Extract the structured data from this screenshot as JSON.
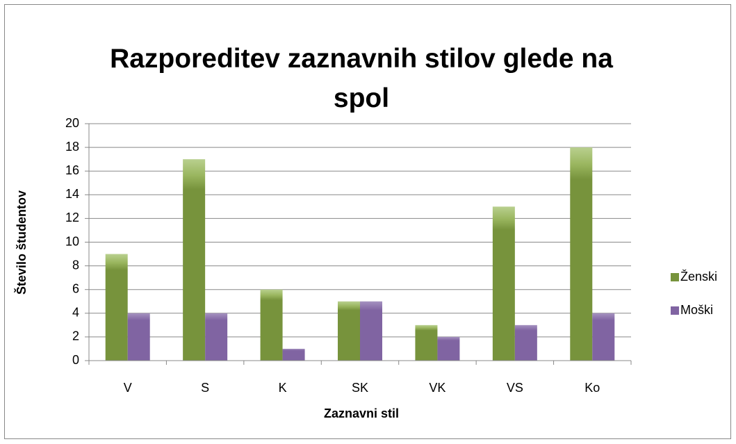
{
  "chart_data": {
    "type": "bar",
    "title": "Razporeditev zaznavnih stilov glede na spol",
    "x_label": "Zaznavni stil",
    "y_label": "Število študentov",
    "categories": [
      "V",
      "S",
      "K",
      "SK",
      "VK",
      "VS",
      "Ko"
    ],
    "series": [
      {
        "name": "Ženski",
        "color": "#77933c",
        "values": [
          9,
          17,
          6,
          5,
          3,
          13,
          18
        ]
      },
      {
        "name": "Moški",
        "color": "#8064a2",
        "values": [
          4,
          4,
          1,
          5,
          2,
          3,
          4
        ]
      }
    ],
    "ylim": [
      0,
      20
    ],
    "yticks": [
      0,
      2,
      4,
      6,
      8,
      10,
      12,
      14,
      16,
      18,
      20
    ],
    "grid": true,
    "legend": "right"
  }
}
